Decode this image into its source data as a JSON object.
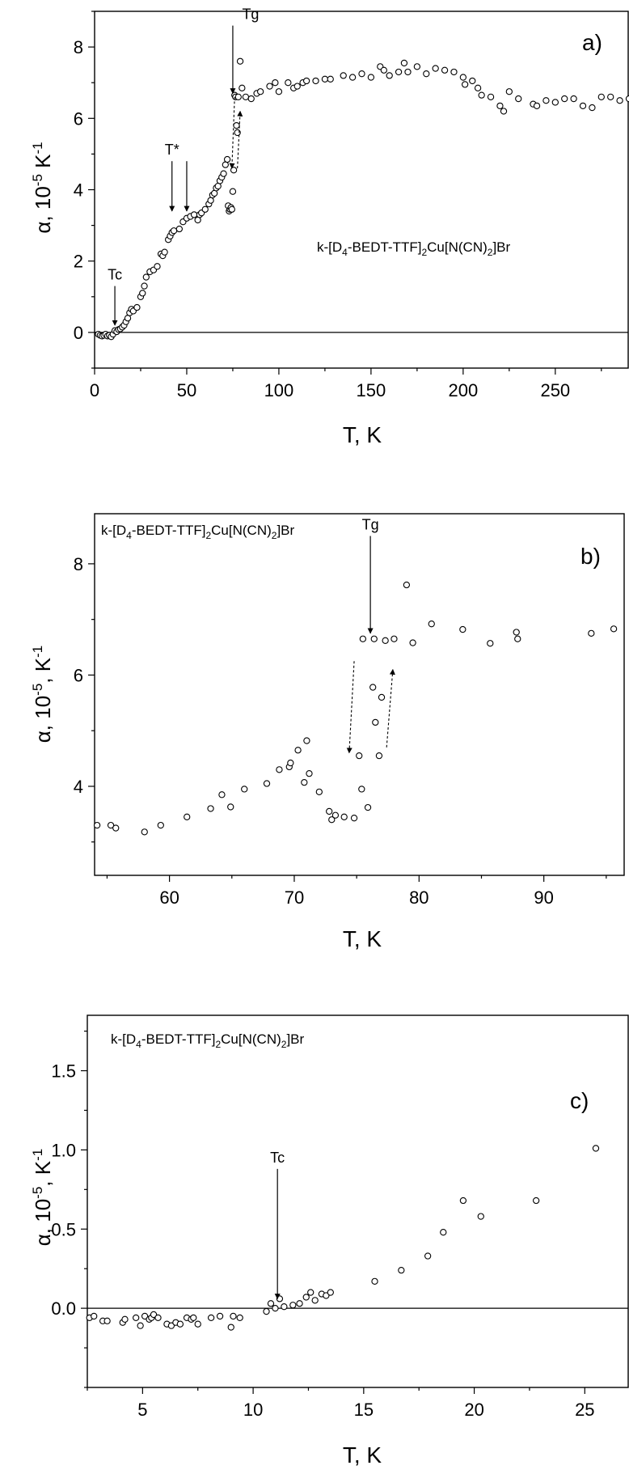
{
  "chart_data": [
    {
      "type": "scatter",
      "panel_label": "a)",
      "compound": {
        "pre": "k-[D",
        "sub1": "4",
        "mid": "-BEDT-TTF]",
        "sub2": "2",
        "post": "Cu[N(CN)",
        "sub3": "2",
        "end": "]Br"
      },
      "xlabel": "T, K",
      "ylabel": {
        "pre": "α, 10",
        "sup1": "-5",
        "mid": " K",
        "sup2": "-1"
      },
      "xlim": [
        0,
        290
      ],
      "ylim": [
        -1,
        9
      ],
      "xticks": [
        0,
        50,
        100,
        150,
        200,
        250
      ],
      "yticks": [
        0,
        2,
        4,
        6,
        8
      ],
      "zero_line": true,
      "annotations": [
        {
          "text": "Tg",
          "x": 75,
          "arrow_from": 8.6,
          "arrow_to": 6.7
        },
        {
          "text": "T*",
          "x": 42,
          "arrow_from": 4.8,
          "arrow_to": 3.4
        },
        {
          "text": "",
          "x": 50,
          "arrow_from": 4.8,
          "arrow_to": 3.4
        },
        {
          "text": "Tc",
          "x": 11,
          "arrow_from": 1.3,
          "arrow_to": 0.2
        }
      ],
      "hysteresis": [
        {
          "x1": 76,
          "y1": 6.6,
          "x2": 74.5,
          "y2": 4.6
        },
        {
          "x1": 77.5,
          "y1": 4.6,
          "x2": 79,
          "y2": 6.2
        }
      ],
      "x": [
        2,
        3,
        4,
        5,
        6,
        7,
        8,
        9,
        10,
        11,
        12,
        13,
        14,
        15,
        16,
        17,
        18,
        19,
        20,
        21,
        23,
        25,
        26,
        27,
        28,
        30,
        32,
        34,
        36,
        37,
        38,
        40,
        41,
        42,
        43,
        46,
        48,
        50,
        52,
        54,
        56,
        57,
        58,
        60,
        62,
        63,
        64,
        65,
        66,
        67,
        68,
        69,
        70,
        71,
        72,
        72.5,
        73,
        73.5,
        74,
        74.5,
        75,
        75.5,
        76,
        76.5,
        77,
        77.5,
        78,
        79,
        80,
        82,
        85,
        88,
        90,
        95,
        98,
        100,
        105,
        108,
        110,
        113,
        115,
        120,
        125,
        128,
        135,
        140,
        145,
        150,
        155,
        157,
        160,
        165,
        168,
        170,
        175,
        180,
        185,
        190,
        195,
        200,
        201,
        205,
        208,
        210,
        215,
        220,
        222,
        225,
        230,
        238,
        240,
        245,
        250,
        255,
        260,
        265,
        270,
        275,
        280,
        285,
        290
      ],
      "y": [
        -0.05,
        -0.08,
        -0.1,
        -0.08,
        -0.05,
        -0.1,
        -0.08,
        -0.12,
        -0.05,
        0.05,
        0.02,
        0.08,
        0.1,
        0.15,
        0.2,
        0.3,
        0.4,
        0.55,
        0.65,
        0.6,
        0.7,
        1.0,
        1.1,
        1.3,
        1.55,
        1.7,
        1.75,
        1.85,
        2.2,
        2.15,
        2.25,
        2.6,
        2.7,
        2.8,
        2.85,
        2.9,
        3.1,
        3.2,
        3.25,
        3.3,
        3.15,
        3.3,
        3.35,
        3.45,
        3.6,
        3.7,
        3.85,
        3.9,
        4.05,
        4.1,
        4.25,
        4.35,
        4.45,
        4.7,
        4.85,
        3.55,
        3.4,
        3.45,
        3.5,
        3.45,
        3.95,
        4.55,
        6.65,
        6.6,
        5.8,
        5.6,
        6.6,
        7.6,
        6.85,
        6.6,
        6.55,
        6.7,
        6.75,
        6.9,
        7.0,
        6.75,
        7.0,
        6.85,
        6.9,
        7.0,
        7.05,
        7.05,
        7.1,
        7.1,
        7.2,
        7.15,
        7.25,
        7.15,
        7.45,
        7.35,
        7.2,
        7.3,
        7.55,
        7.3,
        7.45,
        7.25,
        7.4,
        7.35,
        7.3,
        7.15,
        6.95,
        7.05,
        6.85,
        6.65,
        6.6,
        6.35,
        6.2,
        6.75,
        6.55,
        6.4,
        6.35,
        6.5,
        6.45,
        6.55,
        6.55,
        6.35,
        6.3,
        6.6,
        6.6,
        6.5,
        6.55
      ]
    },
    {
      "type": "scatter",
      "panel_label": "b)",
      "compound": {
        "pre": "k-[D",
        "sub1": "4",
        "mid": "-BEDT-TTF]",
        "sub2": "2",
        "post": "Cu[N(CN)",
        "sub3": "2",
        "end": "]Br"
      },
      "xlabel": "T, K",
      "ylabel": {
        "pre": "α, 10",
        "sup1": "-5",
        "mid": ", K",
        "sup2": "-1"
      },
      "xlim": [
        54,
        96.5
      ],
      "ylim": [
        2.4,
        8.9
      ],
      "xticks": [
        60,
        70,
        80,
        90
      ],
      "yticks": [
        4,
        6,
        8
      ],
      "zero_line": false,
      "annotations": [
        {
          "text": "Tg",
          "x": 76.1,
          "arrow_from": 8.5,
          "arrow_to": 6.75
        }
      ],
      "hysteresis": [
        {
          "x1": 74.8,
          "y1": 6.25,
          "x2": 74.4,
          "y2": 4.6
        },
        {
          "x1": 77.4,
          "y1": 4.7,
          "x2": 77.9,
          "y2": 6.1
        }
      ],
      "x": [
        54.2,
        55.3,
        55.7,
        58,
        59.3,
        61.4,
        63.3,
        64.2,
        64.9,
        66,
        67.8,
        68.8,
        69.6,
        69.7,
        70.3,
        70.8,
        71,
        71.2,
        72,
        72.8,
        73,
        73.3,
        74,
        74.8,
        75.2,
        75.4,
        75.5,
        75.9,
        76.3,
        76.4,
        76.5,
        76.8,
        77,
        77.3,
        78,
        79,
        79.5,
        81,
        83.5,
        85.7,
        87.8,
        87.9,
        93.8,
        95.6
      ],
      "y": [
        3.3,
        3.3,
        3.25,
        3.18,
        3.3,
        3.45,
        3.6,
        3.85,
        3.63,
        3.95,
        4.05,
        4.3,
        4.35,
        4.42,
        4.65,
        4.07,
        4.82,
        4.23,
        3.9,
        3.55,
        3.4,
        3.48,
        3.45,
        3.43,
        4.55,
        3.95,
        6.65,
        3.62,
        5.78,
        6.65,
        5.15,
        4.55,
        5.6,
        6.62,
        6.65,
        7.62,
        6.58,
        6.92,
        6.82,
        6.57,
        6.77,
        6.65,
        6.75,
        6.83
      ]
    },
    {
      "type": "scatter",
      "panel_label": "c)",
      "compound": {
        "pre": "k-[D",
        "sub1": "4",
        "mid": "-BEDT-TTF]",
        "sub2": "2",
        "post": "Cu[N(CN)",
        "sub3": "2",
        "end": "]Br"
      },
      "xlabel": "T, K",
      "ylabel": {
        "pre": "α, 10",
        "sup1": "-5",
        "mid": ", K",
        "sup2": "-1"
      },
      "xlim": [
        2.5,
        27
      ],
      "ylim": [
        -0.5,
        1.85
      ],
      "xticks": [
        5,
        10,
        15,
        20,
        25
      ],
      "yticks": [
        0.0,
        0.5,
        1.0,
        1.5
      ],
      "ytick_labels": [
        "0.0",
        "0.5",
        "1.0",
        "1.5"
      ],
      "zero_line": true,
      "annotations": [
        {
          "text": "Tc",
          "x": 11.1,
          "arrow_from": 0.88,
          "arrow_to": 0.06
        }
      ],
      "hysteresis": [],
      "x": [
        2.6,
        2.8,
        3.2,
        3.4,
        4.1,
        4.2,
        4.7,
        4.9,
        5.1,
        5.3,
        5.4,
        5.5,
        5.7,
        6.1,
        6.3,
        6.5,
        6.7,
        7.0,
        7.2,
        7.3,
        7.5,
        8.1,
        8.5,
        9.0,
        9.1,
        9.4,
        10.6,
        10.8,
        11.0,
        11.2,
        11.4,
        11.8,
        12.1,
        12.4,
        12.6,
        12.8,
        13.1,
        13.3,
        13.5,
        15.5,
        16.7,
        17.9,
        18.6,
        19.5,
        20.3,
        22.8,
        25.5
      ],
      "y": [
        -0.06,
        -0.05,
        -0.08,
        -0.08,
        -0.09,
        -0.07,
        -0.06,
        -0.11,
        -0.05,
        -0.07,
        -0.06,
        -0.04,
        -0.06,
        -0.1,
        -0.11,
        -0.09,
        -0.1,
        -0.06,
        -0.07,
        -0.06,
        -0.1,
        -0.06,
        -0.05,
        -0.12,
        -0.05,
        -0.06,
        -0.02,
        0.03,
        0.0,
        0.06,
        0.01,
        0.02,
        0.03,
        0.07,
        0.1,
        0.05,
        0.09,
        0.08,
        0.1,
        0.17,
        0.24,
        0.33,
        0.48,
        0.68,
        0.58,
        0.68,
        1.01
      ]
    }
  ]
}
